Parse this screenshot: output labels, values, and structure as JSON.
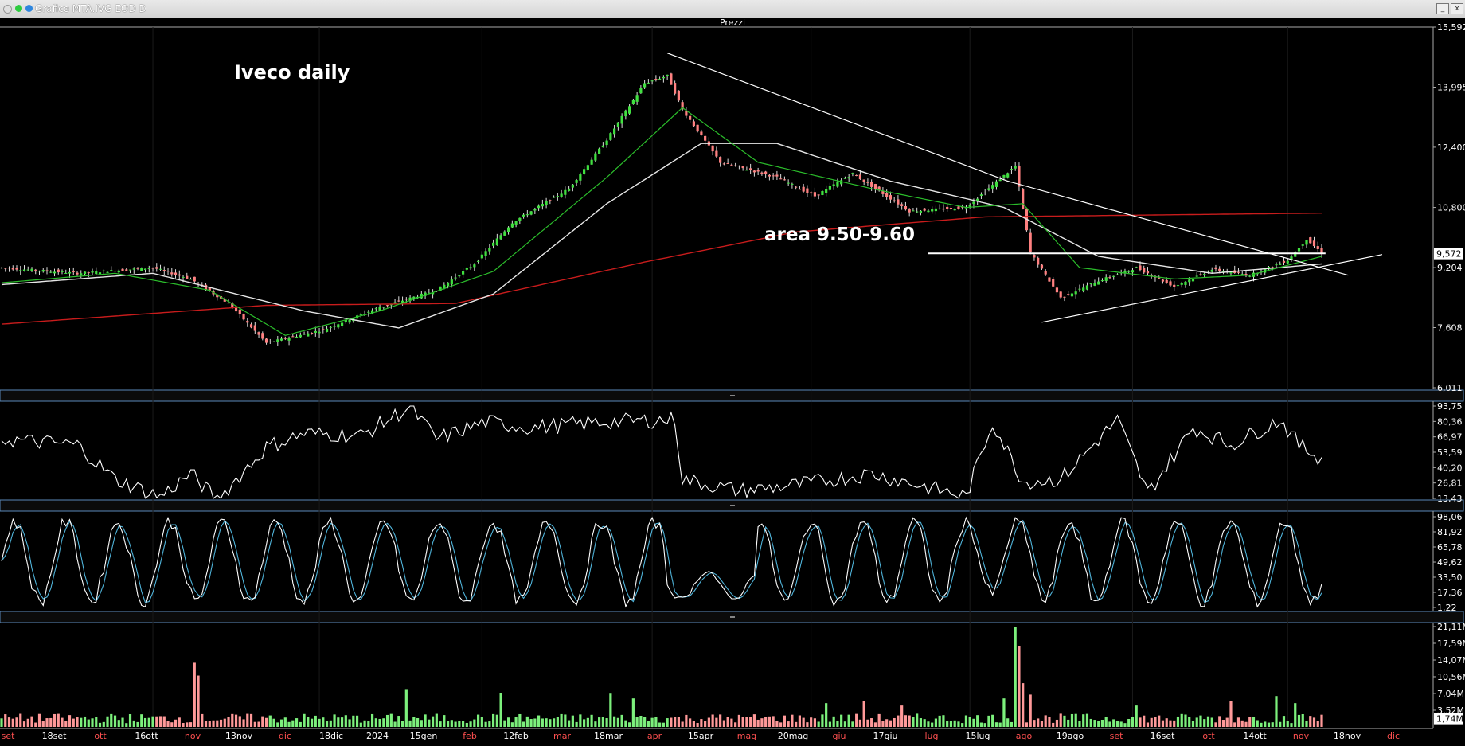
{
  "window": {
    "title": "Grafico MTA.IVG EOD D"
  },
  "panel_title": "Prezzi",
  "chart_data": [
    {
      "type": "candlestick",
      "name": "price",
      "title": "Iveco daily",
      "annotation": "area 9.50-9.60",
      "y_ticks": [
        "15,592",
        "13,995",
        "12,400",
        "10,800",
        "9,204",
        "7,608",
        "6,011"
      ],
      "last_value": "9,572",
      "ylim": [
        6.011,
        15.592
      ],
      "x_labels": [
        "set",
        "18set",
        "ott",
        "16ott",
        "nov",
        "13nov",
        "dic",
        "18dic",
        "2024",
        "15gen",
        "feb",
        "12feb",
        "mar",
        "18mar",
        "apr",
        "15apr",
        "mag",
        "20mag",
        "giu",
        "17giu",
        "lug",
        "15lug",
        "ago",
        "19ago",
        "set",
        "16set",
        "ott",
        "14ott",
        "nov",
        "18nov",
        "dic"
      ],
      "close_anchors": [
        [
          0,
          9.2
        ],
        [
          20,
          9.05
        ],
        [
          40,
          9.2
        ],
        [
          50,
          8.9
        ],
        [
          60,
          8.25
        ],
        [
          70,
          7.2
        ],
        [
          85,
          7.55
        ],
        [
          100,
          8.15
        ],
        [
          115,
          8.6
        ],
        [
          125,
          9.3
        ],
        [
          135,
          10.4
        ],
        [
          150,
          11.3
        ],
        [
          160,
          12.6
        ],
        [
          170,
          14.1
        ],
        [
          176,
          14.3
        ],
        [
          180,
          13.4
        ],
        [
          190,
          12.0
        ],
        [
          205,
          11.6
        ],
        [
          215,
          11.1
        ],
        [
          225,
          11.7
        ],
        [
          240,
          10.7
        ],
        [
          255,
          10.8
        ],
        [
          268,
          11.9
        ],
        [
          272,
          9.6
        ],
        [
          280,
          8.4
        ],
        [
          290,
          8.85
        ],
        [
          300,
          9.2
        ],
        [
          310,
          8.7
        ],
        [
          320,
          9.15
        ],
        [
          330,
          9.0
        ],
        [
          340,
          9.4
        ],
        [
          345,
          9.95
        ],
        [
          349,
          9.6
        ]
      ],
      "sma20_anchors": [
        [
          0,
          8.8
        ],
        [
          30,
          9.05
        ],
        [
          55,
          8.6
        ],
        [
          75,
          7.4
        ],
        [
          100,
          8.05
        ],
        [
          130,
          9.1
        ],
        [
          160,
          11.6
        ],
        [
          180,
          13.45
        ],
        [
          200,
          12.0
        ],
        [
          230,
          11.3
        ],
        [
          255,
          10.8
        ],
        [
          270,
          10.9
        ],
        [
          285,
          9.2
        ],
        [
          310,
          8.9
        ],
        [
          330,
          9.0
        ],
        [
          349,
          9.5
        ]
      ],
      "sma50_anchors": [
        [
          0,
          8.75
        ],
        [
          40,
          9.05
        ],
        [
          80,
          8.05
        ],
        [
          105,
          7.6
        ],
        [
          130,
          8.5
        ],
        [
          160,
          10.9
        ],
        [
          185,
          12.5
        ],
        [
          205,
          12.5
        ],
        [
          235,
          11.5
        ],
        [
          265,
          10.8
        ],
        [
          290,
          9.5
        ],
        [
          320,
          9.05
        ],
        [
          349,
          9.3
        ]
      ],
      "sma200_anchors": [
        [
          0,
          7.7
        ],
        [
          70,
          8.2
        ],
        [
          120,
          8.25
        ],
        [
          170,
          9.35
        ],
        [
          210,
          10.15
        ],
        [
          260,
          10.55
        ],
        [
          349,
          10.65
        ]
      ],
      "lines": [
        {
          "name": "downtrend",
          "points": [
            [
              176,
              14.9
            ],
            [
              266,
              11.5
            ],
            [
              356,
              9.0
            ]
          ]
        },
        {
          "name": "support",
          "points": [
            [
              275,
              7.75
            ],
            [
              365,
              9.55
            ]
          ]
        },
        {
          "name": "resistance",
          "points": [
            [
              245,
              9.58
            ],
            [
              350,
              9.58
            ]
          ]
        }
      ]
    },
    {
      "type": "line",
      "name": "oscillator1",
      "y_ticks": [
        "93,75",
        "80,36",
        "66,97",
        "53,59",
        "40,20",
        "26,81",
        "13,43"
      ],
      "anchors": [
        [
          0,
          65
        ],
        [
          20,
          60
        ],
        [
          30,
          30
        ],
        [
          42,
          15
        ],
        [
          50,
          35
        ],
        [
          57,
          12
        ],
        [
          70,
          58
        ],
        [
          80,
          70
        ],
        [
          95,
          68
        ],
        [
          108,
          93
        ],
        [
          115,
          65
        ],
        [
          128,
          80
        ],
        [
          140,
          75
        ],
        [
          160,
          80
        ],
        [
          178,
          82
        ],
        [
          180,
          30
        ],
        [
          195,
          20
        ],
        [
          210,
          25
        ],
        [
          230,
          35
        ],
        [
          255,
          15
        ],
        [
          262,
          80
        ],
        [
          270,
          28
        ],
        [
          280,
          30
        ],
        [
          295,
          82
        ],
        [
          303,
          18
        ],
        [
          315,
          75
        ],
        [
          325,
          60
        ],
        [
          338,
          82
        ],
        [
          343,
          60
        ],
        [
          348,
          50
        ]
      ],
      "ylim": [
        13.43,
        93.75
      ]
    },
    {
      "type": "line",
      "name": "stochastic",
      "y_ticks": [
        "98,06",
        "81,92",
        "65,78",
        "49,62",
        "33,50",
        "17,36",
        "1,22"
      ],
      "period": 14,
      "ylim": [
        1.22,
        98.06
      ]
    },
    {
      "type": "bar",
      "name": "volume",
      "y_ticks": [
        "21,11M",
        "17,59M",
        "14,07M",
        "10,56M",
        "7,04M",
        "3,52M"
      ],
      "last_value": "1,74M",
      "ylim": [
        0,
        21.11
      ],
      "spikes": [
        [
          51,
          13.5
        ],
        [
          52,
          10.8
        ],
        [
          107,
          7.8
        ],
        [
          132,
          7.2
        ],
        [
          161,
          7.0
        ],
        [
          167,
          6.0
        ],
        [
          218,
          5.0
        ],
        [
          228,
          5.5
        ],
        [
          238,
          4.5
        ],
        [
          265,
          6.0
        ],
        [
          268,
          21.11
        ],
        [
          269,
          17.0
        ],
        [
          270,
          9.2
        ],
        [
          272,
          6.8
        ],
        [
          300,
          4.5
        ],
        [
          325,
          5.5
        ],
        [
          337,
          6.5
        ],
        [
          342,
          5.0
        ]
      ]
    }
  ],
  "colors": {
    "up": "#40e040",
    "down": "#ff8080",
    "sma20": "#2bbd2b",
    "sma50": "#e6e6e6",
    "sma200": "#c81c1c",
    "trend": "#ffffff",
    "osc": "#ffffff",
    "stoch_k": "#ffffff",
    "stoch_d": "#4fb3d9",
    "volume_up": "#7cf07c",
    "volume_down": "#ff9999"
  }
}
